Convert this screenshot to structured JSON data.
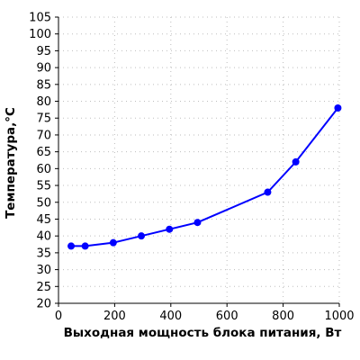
{
  "chart_data": {
    "type": "line",
    "title": "",
    "xlabel": "Выходная мощность блока питания, Вт",
    "ylabel": "Температура,°C",
    "xlim": [
      0,
      1000
    ],
    "ylim": [
      20,
      105
    ],
    "xticks": [
      0,
      200,
      400,
      600,
      800,
      1000
    ],
    "yticks": [
      20,
      25,
      30,
      35,
      40,
      45,
      50,
      55,
      60,
      65,
      70,
      75,
      80,
      85,
      90,
      95,
      100,
      105
    ],
    "grid": true,
    "legend": "none",
    "series": [
      {
        "color": "#0000ff",
        "x": [
          45,
          95,
          195,
          295,
          395,
          495,
          745,
          845,
          995
        ],
        "y": [
          37,
          37,
          38,
          40,
          42,
          44,
          53,
          62,
          78
        ]
      }
    ]
  }
}
